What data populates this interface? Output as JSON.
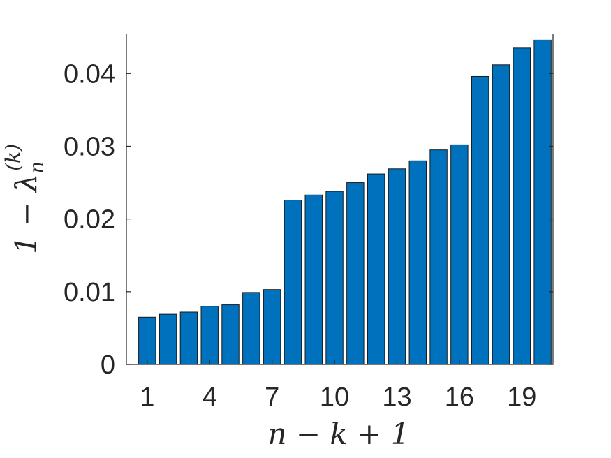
{
  "chart_data": {
    "type": "bar",
    "title": "",
    "xlabel": "n − k + 1",
    "ylabel": "1 − λn(k)",
    "ylabel_parts": {
      "lead": "1 − λ",
      "sub": "n",
      "sup": "(k)"
    },
    "x": [
      1,
      2,
      3,
      4,
      5,
      6,
      7,
      8,
      9,
      10,
      11,
      12,
      13,
      14,
      15,
      16,
      17,
      18,
      19,
      20
    ],
    "values": [
      0.0065,
      0.0069,
      0.0072,
      0.008,
      0.0082,
      0.0099,
      0.0103,
      0.0226,
      0.0233,
      0.0238,
      0.025,
      0.0262,
      0.0269,
      0.028,
      0.0295,
      0.0302,
      0.0396,
      0.0412,
      0.0435,
      0.0446
    ],
    "xlim": [
      0,
      20.5
    ],
    "ylim": [
      0,
      0.0455
    ],
    "x_ticks": [
      1,
      4,
      7,
      10,
      13,
      16,
      19
    ],
    "x_tick_labels": [
      "1",
      "4",
      "7",
      "10",
      "13",
      "16",
      "19"
    ],
    "y_ticks": [
      0,
      0.01,
      0.02,
      0.03,
      0.04
    ],
    "y_tick_labels": [
      "0",
      "0.01",
      "0.02",
      "0.03",
      "0.04"
    ],
    "grid": false,
    "bar_color": "#0072BD",
    "edge_color": "#1a1a1a"
  }
}
